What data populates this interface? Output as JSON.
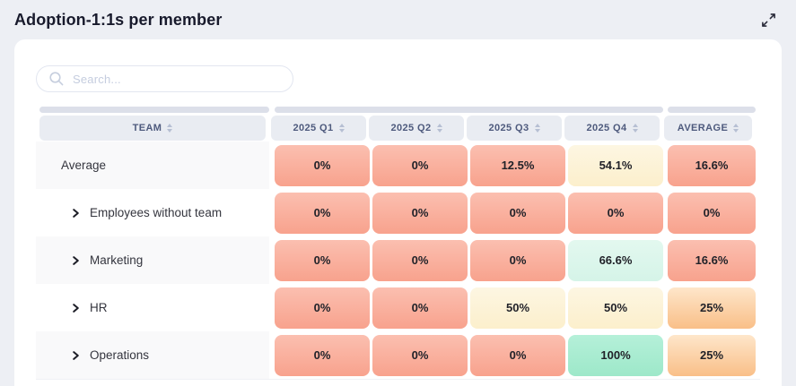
{
  "header": {
    "title": "Adoption-1:1s per member"
  },
  "search": {
    "placeholder": "Search..."
  },
  "palette": {
    "salmon": [
      "#fbbfb0",
      "#f8a28d"
    ],
    "cream": [
      "#fdf6e2",
      "#fcefcc"
    ],
    "mint_light": [
      "#e3f8ef",
      "#d5f4e8"
    ],
    "mint": [
      "#b5f0d9",
      "#9de8c9"
    ],
    "peach": [
      "#fee6ca",
      "#f9bf88"
    ]
  },
  "table": {
    "columns": [
      {
        "id": "team",
        "label": "TEAM",
        "sortable": true
      },
      {
        "id": "q1",
        "label": "2025 Q1",
        "sortable": true
      },
      {
        "id": "q2",
        "label": "2025 Q2",
        "sortable": true
      },
      {
        "id": "q3",
        "label": "2025 Q3",
        "sortable": true
      },
      {
        "id": "q4",
        "label": "2025 Q4",
        "sortable": true
      },
      {
        "id": "avg",
        "label": "AVERAGE",
        "sortable": true
      }
    ],
    "rows": [
      {
        "team": "Average",
        "expandable": false,
        "cells": [
          {
            "value": "0%",
            "tone": "salmon"
          },
          {
            "value": "0%",
            "tone": "salmon"
          },
          {
            "value": "12.5%",
            "tone": "salmon"
          },
          {
            "value": "54.1%",
            "tone": "cream"
          },
          {
            "value": "16.6%",
            "tone": "salmon"
          }
        ]
      },
      {
        "team": "Employees without team",
        "expandable": true,
        "cells": [
          {
            "value": "0%",
            "tone": "salmon"
          },
          {
            "value": "0%",
            "tone": "salmon"
          },
          {
            "value": "0%",
            "tone": "salmon"
          },
          {
            "value": "0%",
            "tone": "salmon"
          },
          {
            "value": "0%",
            "tone": "salmon"
          }
        ]
      },
      {
        "team": "Marketing",
        "expandable": true,
        "cells": [
          {
            "value": "0%",
            "tone": "salmon"
          },
          {
            "value": "0%",
            "tone": "salmon"
          },
          {
            "value": "0%",
            "tone": "salmon"
          },
          {
            "value": "66.6%",
            "tone": "mint_light"
          },
          {
            "value": "16.6%",
            "tone": "salmon"
          }
        ]
      },
      {
        "team": "HR",
        "expandable": true,
        "cells": [
          {
            "value": "0%",
            "tone": "salmon"
          },
          {
            "value": "0%",
            "tone": "salmon"
          },
          {
            "value": "50%",
            "tone": "cream"
          },
          {
            "value": "50%",
            "tone": "cream"
          },
          {
            "value": "25%",
            "tone": "peach"
          }
        ]
      },
      {
        "team": "Operations",
        "expandable": true,
        "cells": [
          {
            "value": "0%",
            "tone": "salmon"
          },
          {
            "value": "0%",
            "tone": "salmon"
          },
          {
            "value": "0%",
            "tone": "salmon"
          },
          {
            "value": "100%",
            "tone": "mint"
          },
          {
            "value": "25%",
            "tone": "peach"
          }
        ]
      }
    ]
  }
}
